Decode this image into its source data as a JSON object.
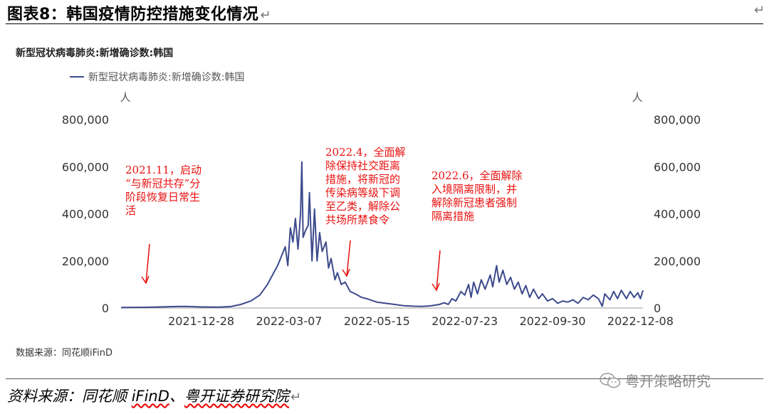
{
  "figure": {
    "title": "图表8：韩国疫情防控措施变化情况",
    "para_mark": "↵",
    "source": "资料来源：同花顺 iFinD、粤开证券研究院",
    "source_parts": [
      "资料来源：同花顺 ",
      "iFinD",
      "、",
      "粤开证券研究院"
    ],
    "watermark": "粤开策略研究"
  },
  "chart_data": {
    "type": "line",
    "title": "新型冠状病毒肺炎:新增确诊数:韩国",
    "note": "数据来源：同花顺iFinD",
    "series": [
      {
        "name": "新型冠状病毒肺炎:新增确诊数:韩国",
        "color": "#3d4a8c"
      }
    ],
    "x_ticks": [
      "2021-12-28",
      "2022-03-07",
      "2022-05-15",
      "2022-07-23",
      "2022-09-30",
      "2022-12-08"
    ],
    "x_range": [
      "2021-10-26",
      "2022-12-10"
    ],
    "ylabel_left": "人",
    "ylabel_right": "人",
    "y_ticks": [
      "0",
      "200,000",
      "400,000",
      "600,000",
      "800,000"
    ],
    "ylim": [
      0,
      800000
    ],
    "points": [
      [
        "2021-10-26",
        2000
      ],
      [
        "2021-11-15",
        3000
      ],
      [
        "2021-12-01",
        5000
      ],
      [
        "2021-12-15",
        7000
      ],
      [
        "2021-12-28",
        4500
      ],
      [
        "2022-01-10",
        3500
      ],
      [
        "2022-01-20",
        6000
      ],
      [
        "2022-01-28",
        15000
      ],
      [
        "2022-02-05",
        30000
      ],
      [
        "2022-02-12",
        55000
      ],
      [
        "2022-02-18",
        100000
      ],
      [
        "2022-02-22",
        140000
      ],
      [
        "2022-02-26",
        180000
      ],
      [
        "2022-03-01",
        220000
      ],
      [
        "2022-03-04",
        260000
      ],
      [
        "2022-03-06",
        180000
      ],
      [
        "2022-03-08",
        340000
      ],
      [
        "2022-03-10",
        280000
      ],
      [
        "2022-03-12",
        380000
      ],
      [
        "2022-03-14",
        250000
      ],
      [
        "2022-03-16",
        400000
      ],
      [
        "2022-03-17",
        620000
      ],
      [
        "2022-03-18",
        300000
      ],
      [
        "2022-03-20",
        330000
      ],
      [
        "2022-03-22",
        350000
      ],
      [
        "2022-03-23",
        490000
      ],
      [
        "2022-03-25",
        200000
      ],
      [
        "2022-03-27",
        420000
      ],
      [
        "2022-03-29",
        200000
      ],
      [
        "2022-03-31",
        320000
      ],
      [
        "2022-04-02",
        240000
      ],
      [
        "2022-04-05",
        280000
      ],
      [
        "2022-04-07",
        170000
      ],
      [
        "2022-04-09",
        210000
      ],
      [
        "2022-04-12",
        120000
      ],
      [
        "2022-04-14",
        150000
      ],
      [
        "2022-04-17",
        100000
      ],
      [
        "2022-04-20",
        110000
      ],
      [
        "2022-04-24",
        70000
      ],
      [
        "2022-04-28",
        60000
      ],
      [
        "2022-05-03",
        45000
      ],
      [
        "2022-05-08",
        38000
      ],
      [
        "2022-05-15",
        25000
      ],
      [
        "2022-05-22",
        20000
      ],
      [
        "2022-05-29",
        15000
      ],
      [
        "2022-06-05",
        10000
      ],
      [
        "2022-06-12",
        8000
      ],
      [
        "2022-06-19",
        7000
      ],
      [
        "2022-06-26",
        9000
      ],
      [
        "2022-07-03",
        15000
      ],
      [
        "2022-07-07",
        22000
      ],
      [
        "2022-07-10",
        15000
      ],
      [
        "2022-07-13",
        40000
      ],
      [
        "2022-07-16",
        30000
      ],
      [
        "2022-07-20",
        70000
      ],
      [
        "2022-07-23",
        55000
      ],
      [
        "2022-07-26",
        100000
      ],
      [
        "2022-07-28",
        45000
      ],
      [
        "2022-07-30",
        110000
      ],
      [
        "2022-08-02",
        60000
      ],
      [
        "2022-08-05",
        120000
      ],
      [
        "2022-08-08",
        80000
      ],
      [
        "2022-08-12",
        140000
      ],
      [
        "2022-08-14",
        90000
      ],
      [
        "2022-08-17",
        180000
      ],
      [
        "2022-08-19",
        110000
      ],
      [
        "2022-08-22",
        160000
      ],
      [
        "2022-08-25",
        100000
      ],
      [
        "2022-08-28",
        130000
      ],
      [
        "2022-08-31",
        80000
      ],
      [
        "2022-09-03",
        110000
      ],
      [
        "2022-09-06",
        60000
      ],
      [
        "2022-09-09",
        95000
      ],
      [
        "2022-09-12",
        45000
      ],
      [
        "2022-09-15",
        80000
      ],
      [
        "2022-09-19",
        40000
      ],
      [
        "2022-09-22",
        60000
      ],
      [
        "2022-09-26",
        30000
      ],
      [
        "2022-09-30",
        40000
      ],
      [
        "2022-10-04",
        20000
      ],
      [
        "2022-10-08",
        30000
      ],
      [
        "2022-10-12",
        25000
      ],
      [
        "2022-10-16",
        35000
      ],
      [
        "2022-10-20",
        20000
      ],
      [
        "2022-10-24",
        45000
      ],
      [
        "2022-10-28",
        35000
      ],
      [
        "2022-11-01",
        55000
      ],
      [
        "2022-11-05",
        40000
      ],
      [
        "2022-11-08",
        8000
      ],
      [
        "2022-11-10",
        60000
      ],
      [
        "2022-11-14",
        35000
      ],
      [
        "2022-11-17",
        70000
      ],
      [
        "2022-11-20",
        40000
      ],
      [
        "2022-11-23",
        75000
      ],
      [
        "2022-11-27",
        40000
      ],
      [
        "2022-11-30",
        70000
      ],
      [
        "2022-12-03",
        45000
      ],
      [
        "2022-12-06",
        65000
      ],
      [
        "2022-12-08",
        40000
      ],
      [
        "2022-12-10",
        75000
      ]
    ],
    "annotations": [
      {
        "lines": [
          "2021.11，启动",
          "“与新冠共存”分",
          "阶段恢复日常生",
          "活"
        ],
        "date": "2021-11-15",
        "color": "#e8110f"
      },
      {
        "lines": [
          "2022.4，全面解",
          "除保持社交距离",
          "措施，将新冠的",
          "传染病等级下调",
          "至乙类，解除公",
          "共场所禁食令"
        ],
        "date": "2022-04-18",
        "color": "#e8110f"
      },
      {
        "lines": [
          "2022.6，全面解除",
          "入境隔离限制，并",
          "解除新冠患者强制",
          "隔离措施"
        ],
        "date": "2022-06-15",
        "color": "#e8110f"
      }
    ]
  }
}
